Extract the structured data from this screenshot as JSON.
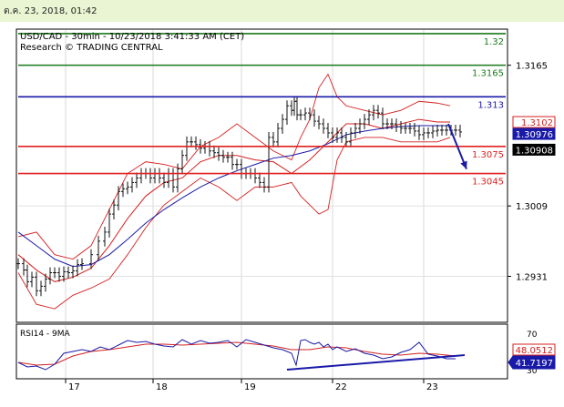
{
  "header": {
    "timestamp": "ต.ค. 23, 2018, 01:42"
  },
  "chart_data": {
    "type": "line",
    "title": "USD/CAD - 30min - 10/23/2018 3:41:33 AM (CET)",
    "subtitle": "Research © TRADING CENTRAL",
    "x_tick_labels": [
      "17",
      "18",
      "19",
      "22",
      "23"
    ],
    "price_axis": {
      "ylim": [
        1.288,
        1.3205
      ],
      "tick_labels": [
        "1.3165",
        "1.3009",
        "1.2931"
      ],
      "badges": [
        {
          "label": "1.3102",
          "value": 1.3102,
          "style": "red-border"
        },
        {
          "label": "1.30976",
          "value": 1.30976,
          "style": "blue"
        },
        {
          "label": "1.30908",
          "value": 1.30908,
          "style": "black"
        }
      ]
    },
    "levels": [
      {
        "label": "1.32",
        "value": 1.32,
        "color": "#1a7a1a"
      },
      {
        "label": "1.3165",
        "value": 1.3165,
        "color": "#1a7a1a"
      },
      {
        "label": "1.313",
        "value": 1.313,
        "color": "#1a1aa8"
      },
      {
        "label": "1.3075",
        "value": 1.3075,
        "color": "#e02020"
      },
      {
        "label": "1.3045",
        "value": 1.3045,
        "color": "#e02020"
      }
    ],
    "price_series": {
      "name": "USD/CAD",
      "x": [
        0,
        6,
        10,
        15,
        20,
        25,
        30,
        35,
        40,
        45,
        50,
        55,
        60,
        65,
        70,
        80,
        88,
        95,
        100,
        105,
        110,
        115,
        120,
        125,
        130,
        135,
        140,
        145,
        150,
        155,
        160,
        165,
        170,
        175,
        180,
        185,
        190,
        195,
        200,
        205,
        210,
        215,
        220,
        225,
        230,
        235,
        240,
        245,
        250,
        255,
        260,
        265,
        270,
        275,
        280,
        285,
        290,
        295,
        300,
        303,
        306,
        310,
        315,
        320,
        325,
        330,
        335,
        340,
        345,
        350,
        355,
        360,
        365,
        370,
        375,
        380,
        385,
        390,
        395,
        400,
        405,
        410,
        415,
        420,
        425,
        430,
        435,
        440,
        445,
        450,
        455,
        460,
        465,
        470,
        475,
        480,
        485
      ],
      "close": [
        1.2945,
        1.2938,
        1.2925,
        1.293,
        1.2915,
        1.292,
        1.2928,
        1.2935,
        1.2935,
        1.2931,
        1.2936,
        1.2935,
        1.2937,
        1.2944,
        1.2945,
        1.2955,
        1.297,
        1.298,
        1.3,
        1.301,
        1.3025,
        1.3028,
        1.303,
        1.3035,
        1.304,
        1.3045,
        1.3045,
        1.304,
        1.3045,
        1.304,
        1.3035,
        1.3045,
        1.303,
        1.305,
        1.3065,
        1.308,
        1.308,
        1.3077,
        1.3073,
        1.3075,
        1.307,
        1.3068,
        1.3065,
        1.3063,
        1.3063,
        1.3055,
        1.3055,
        1.3045,
        1.3045,
        1.3045,
        1.304,
        1.3035,
        1.303,
        1.3085,
        1.308,
        1.3095,
        1.3105,
        1.312,
        1.3115,
        1.3125,
        1.311,
        1.311,
        1.3112,
        1.311,
        1.3103,
        1.31,
        1.3095,
        1.309,
        1.3085,
        1.309,
        1.3085,
        1.308,
        1.309,
        1.3095,
        1.31,
        1.3105,
        1.311,
        1.3115,
        1.3112,
        1.31,
        1.31,
        1.31,
        1.3097,
        1.3095,
        1.3095,
        1.3095,
        1.3092,
        1.3088,
        1.309,
        1.309,
        1.3092,
        1.3093,
        1.3093,
        1.3093,
        1.3093,
        1.3093,
        1.3091
      ]
    },
    "bollinger_upper": {
      "x": [
        0,
        20,
        40,
        60,
        80,
        100,
        120,
        140,
        160,
        180,
        200,
        220,
        240,
        260,
        280,
        300,
        310,
        320,
        330,
        340,
        350,
        360,
        380,
        400,
        420,
        440,
        460,
        474
      ],
      "y": [
        1.2975,
        1.298,
        1.2955,
        1.295,
        1.2965,
        1.3005,
        1.3045,
        1.3058,
        1.3055,
        1.305,
        1.3075,
        1.3085,
        1.31,
        1.3085,
        1.307,
        1.306,
        1.3085,
        1.3105,
        1.314,
        1.3155,
        1.313,
        1.312,
        1.3115,
        1.311,
        1.3115,
        1.3125,
        1.3123,
        1.312
      ]
    },
    "bollinger_lower": {
      "x": [
        0,
        20,
        40,
        60,
        80,
        100,
        120,
        140,
        160,
        180,
        200,
        220,
        240,
        260,
        280,
        300,
        310,
        320,
        330,
        340,
        350,
        360,
        380,
        400,
        420,
        440,
        460,
        474
      ],
      "y": [
        1.2935,
        1.29,
        1.2895,
        1.291,
        1.2918,
        1.2928,
        1.2955,
        1.2985,
        1.301,
        1.3025,
        1.304,
        1.303,
        1.3015,
        1.303,
        1.303,
        1.3035,
        1.302,
        1.301,
        1.3,
        1.3005,
        1.306,
        1.308,
        1.3085,
        1.3085,
        1.308,
        1.308,
        1.308,
        1.3085
      ]
    },
    "moving_average_red": {
      "x": [
        0,
        20,
        40,
        60,
        80,
        100,
        120,
        140,
        160,
        180,
        200,
        220,
        240,
        260,
        280,
        300,
        320,
        340,
        360,
        380,
        400,
        420,
        440,
        460,
        474
      ],
      "y": [
        1.2955,
        1.2938,
        1.2925,
        1.293,
        1.294,
        1.2965,
        1.2995,
        1.302,
        1.3035,
        1.304,
        1.3058,
        1.3065,
        1.3065,
        1.306,
        1.3058,
        1.3045,
        1.306,
        1.308,
        1.31,
        1.31,
        1.3095,
        1.31,
        1.3105,
        1.3102,
        1.3102
      ]
    },
    "moving_average_blue": {
      "x": [
        0,
        20,
        40,
        60,
        80,
        100,
        120,
        140,
        160,
        180,
        200,
        220,
        240,
        260,
        280,
        300,
        320,
        340,
        360,
        380,
        400,
        420,
        440,
        460,
        474
      ],
      "y": [
        1.298,
        1.2965,
        1.295,
        1.2942,
        1.2944,
        1.2955,
        1.2972,
        1.299,
        1.3005,
        1.3018,
        1.303,
        1.304,
        1.3048,
        1.3055,
        1.3062,
        1.3065,
        1.307,
        1.3078,
        1.3088,
        1.3092,
        1.3095,
        1.3097,
        1.3098,
        1.3098,
        1.3098
      ]
    },
    "projection_arrow": {
      "from": [
        472,
        1.31
      ],
      "to": [
        492,
        1.305
      ]
    },
    "rsi_panel": {
      "label": "RSI14 - 9MA",
      "ylim": [
        20,
        80
      ],
      "tick_labels": [
        "70",
        "30"
      ],
      "tick_values": [
        70,
        30
      ],
      "rsi_value_badge": "48.0512",
      "ma_value_badge": "41.7197",
      "rsi": {
        "x": [
          0,
          10,
          20,
          30,
          40,
          50,
          60,
          70,
          80,
          90,
          100,
          110,
          120,
          130,
          140,
          150,
          160,
          170,
          180,
          190,
          200,
          210,
          220,
          230,
          240,
          250,
          260,
          270,
          280,
          290,
          300,
          305,
          310,
          315,
          320,
          325,
          330,
          335,
          340,
          345,
          350,
          360,
          370,
          380,
          390,
          400,
          410,
          420,
          430,
          440,
          450,
          460,
          470,
          480
        ],
        "y": [
          38,
          33,
          34,
          30,
          36,
          48,
          50,
          52,
          50,
          55,
          52,
          57,
          62,
          60,
          61,
          58,
          56,
          55,
          63,
          58,
          62,
          59,
          60,
          62,
          55,
          63,
          60,
          57,
          54,
          52,
          48,
          35,
          62,
          63,
          60,
          58,
          60,
          55,
          58,
          52,
          55,
          50,
          53,
          48,
          46,
          42,
          44,
          49,
          52,
          60,
          47,
          45,
          42,
          42
        ]
      },
      "ma": {
        "x": [
          0,
          20,
          40,
          60,
          80,
          100,
          120,
          140,
          160,
          180,
          200,
          220,
          240,
          260,
          280,
          300,
          320,
          340,
          360,
          380,
          400,
          420,
          440,
          460,
          480
        ],
        "y": [
          38,
          35,
          36,
          45,
          50,
          52,
          55,
          58,
          58,
          57,
          58,
          59,
          60,
          58,
          56,
          52,
          52,
          55,
          54,
          50,
          47,
          46,
          48,
          47,
          45
        ]
      },
      "trendline": {
        "from": [
          295,
          30
        ],
        "to": [
          490,
          46
        ]
      }
    },
    "grid": true,
    "legend": "none"
  }
}
